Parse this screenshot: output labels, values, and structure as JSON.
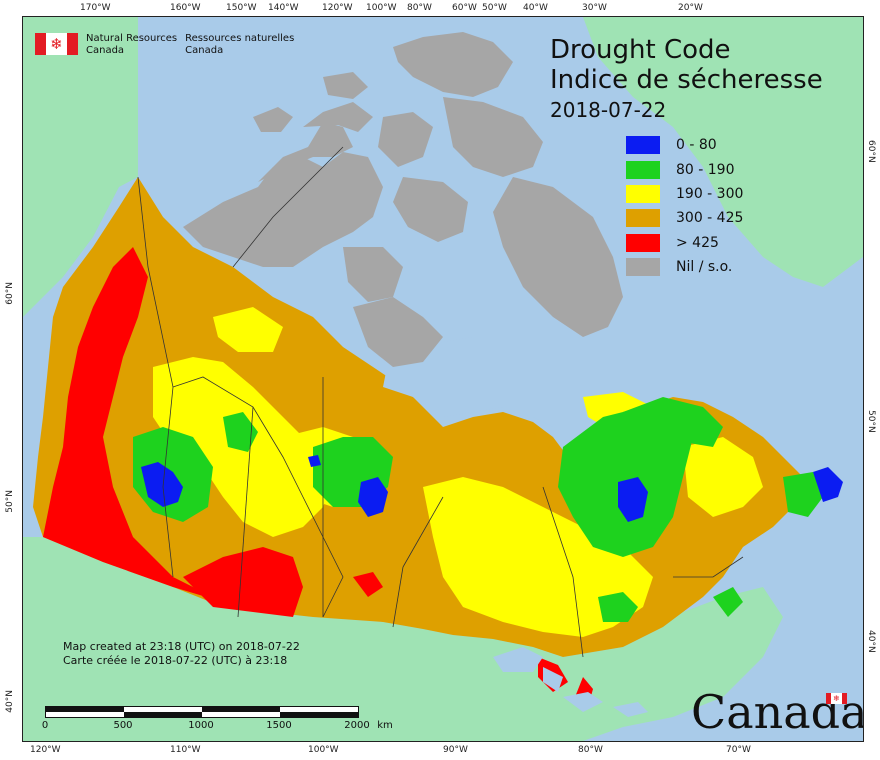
{
  "header": {
    "agency_en_line1": "Natural Resources",
    "agency_en_line2": "Canada",
    "agency_fr_line1": "Ressources naturelles",
    "agency_fr_line2": "Canada",
    "title_en": "Drought Code",
    "title_fr": "Indice de sécheresse",
    "date": "2018-07-22"
  },
  "legend": [
    {
      "label": "0 - 80",
      "color": "#0b1cf2"
    },
    {
      "label": "80 - 190",
      "color": "#1ed21e"
    },
    {
      "label": "190 - 300",
      "color": "#ffff00"
    },
    {
      "label": "300 - 425",
      "color": "#dea000"
    },
    {
      "label": "> 425",
      "color": "#ff0000"
    },
    {
      "label": "Nil / s.o.",
      "color": "#a6a6a6"
    }
  ],
  "credits": {
    "line_en": "Map created at 23:18 (UTC) on 2018-07-22",
    "line_fr": "Carte créée le 2018-07-22 (UTC) à 23:18"
  },
  "scale": {
    "labels": [
      "0",
      "500",
      "1000",
      "1500",
      "2000"
    ],
    "unit": "km"
  },
  "graticule": {
    "top": [
      "170°W",
      "160°W",
      "150°W",
      "140°W",
      "120°W",
      "100°W",
      "80°W",
      "60°W",
      "50°W",
      "40°W",
      "30°W",
      "20°W"
    ],
    "bottom": [
      "120°W",
      "110°W",
      "100°W",
      "90°W",
      "80°W",
      "70°W"
    ],
    "left": [
      "60°N",
      "50°N",
      "40°N"
    ],
    "right": [
      "60°N",
      "50°N",
      "40°N"
    ]
  },
  "wordmark": "Canada",
  "map_colors": {
    "ocean": "#a9cbe9",
    "foreign_land": "#9fe3b4",
    "nil": "#a6a6a6"
  }
}
